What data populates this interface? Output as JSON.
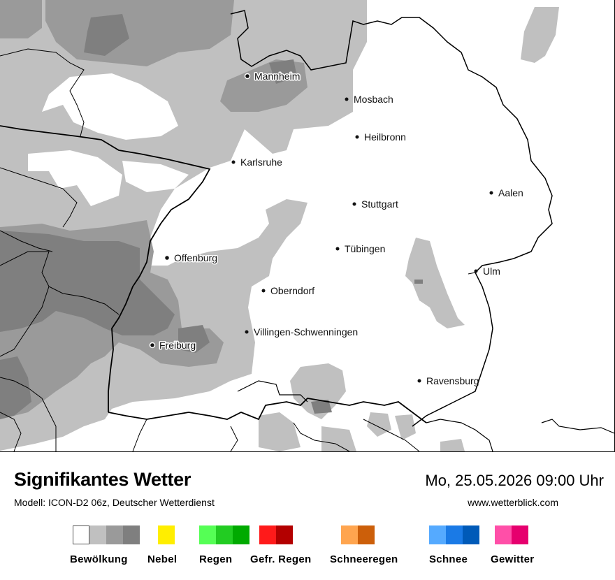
{
  "footer": {
    "title": "Signifikantes Wetter",
    "subtitle": "Modell: ICON-D2 06z, Deutscher Wetterdienst",
    "datetime": "Mo, 25.05.2026 09:00 Uhr",
    "website": "www.wetterblick.com"
  },
  "map": {
    "cities": [
      {
        "id": "mannheim",
        "name": "Mannheim"
      },
      {
        "id": "mosbach",
        "name": "Mosbach"
      },
      {
        "id": "heilbronn",
        "name": "Heilbronn"
      },
      {
        "id": "karlsruhe",
        "name": "Karlsruhe"
      },
      {
        "id": "aalen",
        "name": "Aalen"
      },
      {
        "id": "stuttgart",
        "name": "Stuttgart"
      },
      {
        "id": "tuebingen",
        "name": "Tübingen"
      },
      {
        "id": "offenburg",
        "name": "Offenburg"
      },
      {
        "id": "ulm",
        "name": "Ulm"
      },
      {
        "id": "oberndorf",
        "name": "Oberndorf"
      },
      {
        "id": "villingen",
        "name": "Villingen-Schwenningen"
      },
      {
        "id": "freiburg",
        "name": "Freiburg"
      },
      {
        "id": "ravensburg",
        "name": "Ravensburg"
      }
    ],
    "cloud_colors": {
      "light": "#c0c0c0",
      "medium": "#9a9a9a",
      "dark": "#7f7f7f"
    }
  },
  "legend": [
    {
      "label": "Bewölkung",
      "colors": [
        "#ffffff",
        "#c0c0c0",
        "#9a9a9a",
        "#7f7f7f"
      ]
    },
    {
      "label": "Nebel",
      "colors": [
        "#ffee00"
      ]
    },
    {
      "label": "Regen",
      "colors": [
        "#55ff55",
        "#22cc22",
        "#00aa00"
      ]
    },
    {
      "label": "Gefr. Regen",
      "colors": [
        "#ff1a1a",
        "#b30000"
      ]
    },
    {
      "label": "Schneeregen",
      "colors": [
        "#ffa54f",
        "#cc5f0a"
      ]
    },
    {
      "label": "Schnee",
      "colors": [
        "#55aaff",
        "#1a7ae6",
        "#005ab8"
      ]
    },
    {
      "label": "Gewitter",
      "colors": [
        "#ff4fa8",
        "#e6006e"
      ]
    }
  ]
}
